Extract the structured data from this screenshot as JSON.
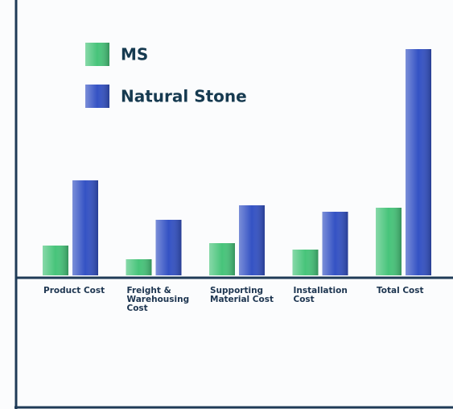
{
  "chart_data": {
    "type": "bar",
    "categories": [
      "Product Cost",
      "Freight & Warehousing Cost",
      "Supporting Material Cost",
      "Installation Cost",
      "Total Cost"
    ],
    "series": [
      {
        "name": "MS",
        "color": "#47c47a",
        "values": [
          37,
          20,
          40,
          32,
          84
        ]
      },
      {
        "name": "Natural Stone",
        "color": "#3452c4",
        "values": [
          118,
          69,
          87,
          79,
          281
        ]
      }
    ],
    "ylim": [
      0,
      320
    ]
  }
}
